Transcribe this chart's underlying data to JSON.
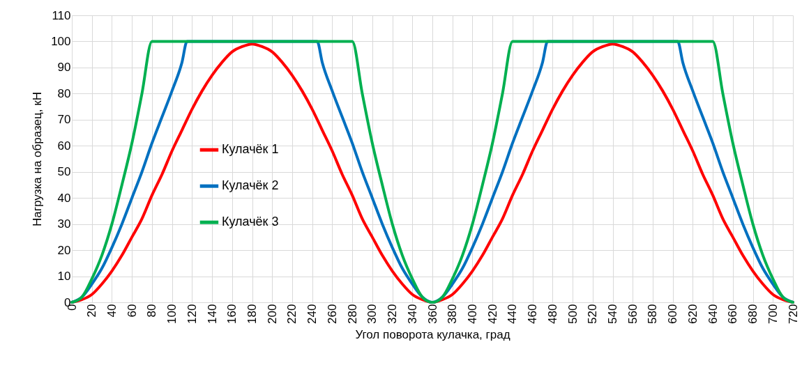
{
  "chart_data": {
    "type": "line",
    "xlabel": "Угол поворота кулачка, град",
    "ylabel": "Нагрузка на образец, кН",
    "xlim": [
      0,
      720
    ],
    "xticks": [
      0,
      20,
      40,
      60,
      80,
      100,
      120,
      140,
      160,
      180,
      200,
      220,
      240,
      260,
      280,
      300,
      320,
      340,
      360,
      380,
      400,
      420,
      440,
      460,
      480,
      500,
      520,
      540,
      560,
      580,
      600,
      620,
      640,
      660,
      680,
      700,
      720
    ],
    "ylim": [
      0,
      110
    ],
    "yticks": [
      0,
      10,
      20,
      30,
      40,
      50,
      60,
      70,
      80,
      90,
      100,
      110
    ],
    "grid": true,
    "legend": "left",
    "marker": "none",
    "line_style": "solid",
    "series": [
      {
        "name": "Кулачёк 1",
        "color": "#ff0000",
        "x": [
          0,
          10,
          20,
          30,
          40,
          50,
          60,
          70,
          80,
          90,
          100,
          110,
          120,
          130,
          140,
          150,
          160,
          170,
          180,
          190,
          200,
          210,
          220,
          230,
          240,
          250,
          260,
          270,
          280,
          290,
          300,
          310,
          320,
          330,
          340,
          350,
          360,
          370,
          380,
          390,
          400,
          410,
          420,
          430,
          440,
          450,
          460,
          470,
          480,
          490,
          500,
          510,
          520,
          530,
          540,
          550,
          560,
          570,
          580,
          590,
          600,
          610,
          620,
          630,
          640,
          650,
          660,
          670,
          680,
          690,
          700,
          710,
          720
        ],
        "values": [
          0,
          1,
          3,
          7,
          12,
          18,
          25,
          32,
          41,
          49,
          58,
          66,
          74,
          81,
          87,
          92,
          96,
          98,
          99,
          98,
          96,
          92,
          87,
          81,
          74,
          66,
          58,
          49,
          41,
          32,
          25,
          18,
          12,
          7,
          3,
          1,
          0,
          1,
          3,
          7,
          12,
          18,
          25,
          32,
          41,
          49,
          58,
          66,
          74,
          81,
          87,
          92,
          96,
          98,
          99,
          98,
          96,
          92,
          87,
          81,
          74,
          66,
          58,
          49,
          41,
          32,
          25,
          18,
          12,
          7,
          3,
          1,
          0
        ]
      },
      {
        "name": "Кулачёк 2",
        "color": "#0070c0",
        "x": [
          0,
          10,
          20,
          30,
          40,
          50,
          60,
          70,
          80,
          90,
          100,
          110,
          115,
          245,
          250,
          260,
          270,
          280,
          290,
          300,
          310,
          320,
          330,
          340,
          350,
          360,
          370,
          380,
          390,
          400,
          410,
          420,
          430,
          440,
          450,
          460,
          470,
          475,
          605,
          610,
          620,
          630,
          640,
          650,
          660,
          670,
          680,
          690,
          700,
          710,
          720
        ],
        "values": [
          0,
          2,
          7,
          13,
          21,
          30,
          40,
          50,
          61,
          71,
          81,
          92,
          100,
          100,
          92,
          81,
          71,
          61,
          50,
          40,
          30,
          21,
          13,
          7,
          2,
          0,
          2,
          7,
          13,
          21,
          30,
          40,
          50,
          61,
          71,
          81,
          92,
          100,
          100,
          92,
          81,
          71,
          61,
          50,
          40,
          30,
          21,
          13,
          7,
          2,
          0
        ]
      },
      {
        "name": "Кулачёк 3",
        "color": "#00b050",
        "x": [
          0,
          10,
          20,
          30,
          40,
          50,
          60,
          70,
          80,
          280,
          290,
          300,
          310,
          320,
          330,
          340,
          350,
          360,
          370,
          380,
          390,
          400,
          410,
          420,
          430,
          440,
          640,
          650,
          660,
          670,
          680,
          690,
          700,
          710,
          720
        ],
        "values": [
          0,
          2,
          9,
          18,
          30,
          45,
          61,
          80,
          100,
          100,
          80,
          61,
          45,
          30,
          18,
          9,
          2,
          0,
          2,
          9,
          18,
          30,
          45,
          61,
          80,
          100,
          100,
          80,
          61,
          45,
          30,
          18,
          9,
          2,
          0
        ]
      }
    ]
  }
}
